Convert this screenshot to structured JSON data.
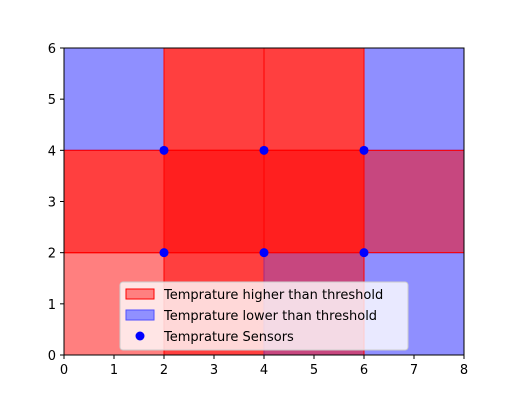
{
  "chart_data": {
    "type": "heatmap",
    "title": "",
    "xlabel": "",
    "ylabel": "",
    "xlim": [
      0,
      8
    ],
    "ylim": [
      0,
      6
    ],
    "xticks": [
      0,
      1,
      2,
      3,
      4,
      5,
      6,
      7,
      8
    ],
    "yticks": [
      0,
      1,
      2,
      3,
      4,
      5,
      6
    ],
    "grid": false,
    "legend_placement": "lower-center",
    "colors": {
      "higher_fill": "#ff0000",
      "higher_edge": "#ff0000",
      "lower_fill": "#2020ff",
      "lower_edge": "#5050ff",
      "sensor": "#0000ff"
    },
    "regions": [
      {
        "x0": 0,
        "x1": 2,
        "y0": 0,
        "y1": 2,
        "status": "higher"
      },
      {
        "x0": 2,
        "x1": 4,
        "y0": 0,
        "y1": 2,
        "status": "higher"
      },
      {
        "x0": 4,
        "x1": 6,
        "y0": 0,
        "y1": 2,
        "status": "lower"
      },
      {
        "x0": 6,
        "x1": 8,
        "y0": 0,
        "y1": 2,
        "status": "lower"
      },
      {
        "x0": 0,
        "x1": 2,
        "y0": 2,
        "y1": 4,
        "status": "higher"
      },
      {
        "x0": 2,
        "x1": 4,
        "y0": 2,
        "y1": 4,
        "status": "higher"
      },
      {
        "x0": 4,
        "x1": 6,
        "y0": 2,
        "y1": 4,
        "status": "higher"
      },
      {
        "x0": 6,
        "x1": 8,
        "y0": 2,
        "y1": 4,
        "status": "lower"
      },
      {
        "x0": 0,
        "x1": 2,
        "y0": 4,
        "y1": 6,
        "status": "lower"
      },
      {
        "x0": 2,
        "x1": 4,
        "y0": 4,
        "y1": 6,
        "status": "higher"
      },
      {
        "x0": 4,
        "x1": 6,
        "y0": 4,
        "y1": 6,
        "status": "higher"
      },
      {
        "x0": 6,
        "x1": 8,
        "y0": 4,
        "y1": 6,
        "status": "lower"
      },
      {
        "x0": 2,
        "x1": 6,
        "y0": 0,
        "y1": 6,
        "status": "higher"
      },
      {
        "x0": 0,
        "x1": 8,
        "y0": 2,
        "y1": 4,
        "status": "higher"
      }
    ],
    "sensors": [
      {
        "x": 2,
        "y": 2
      },
      {
        "x": 4,
        "y": 2
      },
      {
        "x": 6,
        "y": 2
      },
      {
        "x": 2,
        "y": 4
      },
      {
        "x": 4,
        "y": 4
      },
      {
        "x": 6,
        "y": 4
      }
    ],
    "legend": {
      "higher": "Temprature higher than threshold",
      "lower": "Temprature lower than threshold",
      "sensors": "Temprature Sensors"
    }
  }
}
